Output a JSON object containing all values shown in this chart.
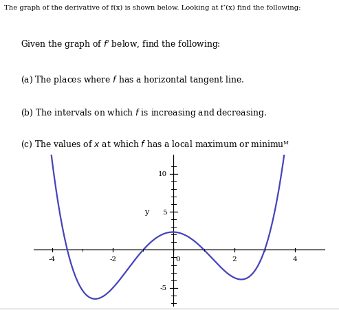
{
  "title_top": "The graph of the derivative of f(x) is shown below. Looking at f’(x) find the following:",
  "line1": "Given the graph of $f'$ below, find the following:",
  "line2": "(a) The places where $f$ has a horizontal tangent line.",
  "line3": "(b) The intervals on which $f$ is increasing and decreasing.",
  "line4": "(c) The values of $x$ at which $f$ has a local maximum or minimuᴹ",
  "curve_color": "#4444bb",
  "curve_linewidth": 1.6,
  "xlim": [
    -4.6,
    5.0
  ],
  "ylim": [
    -7.5,
    12.5
  ],
  "xticks": [
    -4,
    -2,
    2,
    4
  ],
  "ytick_pos": [
    -5,
    5,
    10
  ],
  "ytick_labels": [
    "-5",
    "5",
    "10"
  ],
  "background_color": "#ffffff",
  "k": 4.95,
  "zeros_sq": 12.25,
  "inner_zeros_sq": 1.0
}
